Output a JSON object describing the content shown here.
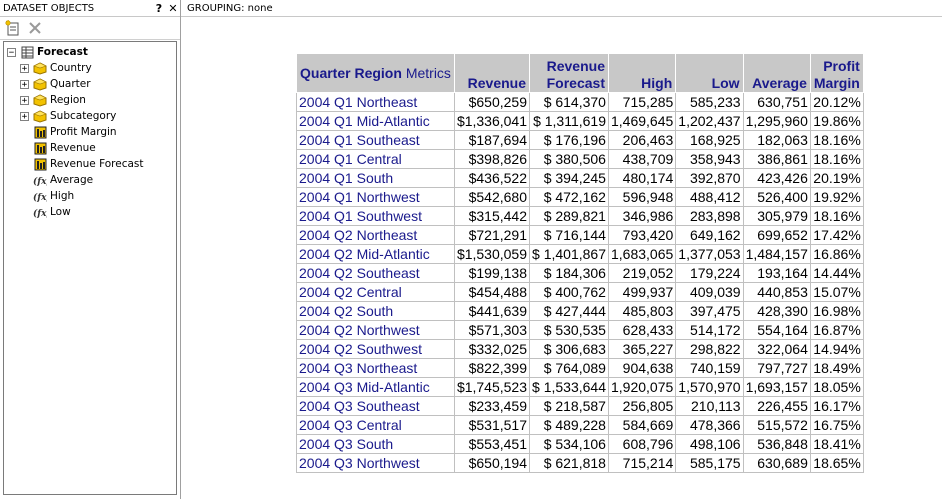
{
  "panel": {
    "title": "DATASET OBJECTS",
    "help_label": "?",
    "close_label": "✕",
    "tree": {
      "root": "Forecast",
      "attributes": [
        "Country",
        "Quarter",
        "Region",
        "Subcategory"
      ],
      "metrics": [
        "Profit Margin",
        "Revenue",
        "Revenue Forecast"
      ],
      "derived": [
        "Average",
        "High",
        "Low"
      ]
    }
  },
  "grouping": {
    "label": "GROUPING:",
    "value": "none"
  },
  "grid": {
    "header": {
      "quarter": "Quarter",
      "region": "Region",
      "metrics": "Metrics",
      "revenue": "Revenue",
      "revenue_forecast_1": "Revenue",
      "revenue_forecast_2": "Forecast",
      "high": "High",
      "low": "Low",
      "average": "Average",
      "profit_margin_1": "Profit",
      "profit_margin_2": "Margin"
    },
    "rows": [
      {
        "quarter": "2004 Q1",
        "region": "Northeast",
        "revenue": "$650,259",
        "forecast": "$ 614,370",
        "high": "715,285",
        "low": "585,233",
        "average": "630,751",
        "margin": "20.12%"
      },
      {
        "quarter": "2004 Q1",
        "region": "Mid-Atlantic",
        "revenue": "$1,336,041",
        "forecast": "$ 1,311,619",
        "high": "1,469,645",
        "low": "1,202,437",
        "average": "1,295,960",
        "margin": "19.86%"
      },
      {
        "quarter": "2004 Q1",
        "region": "Southeast",
        "revenue": "$187,694",
        "forecast": "$ 176,196",
        "high": "206,463",
        "low": "168,925",
        "average": "182,063",
        "margin": "18.16%"
      },
      {
        "quarter": "2004 Q1",
        "region": "Central",
        "revenue": "$398,826",
        "forecast": "$ 380,506",
        "high": "438,709",
        "low": "358,943",
        "average": "386,861",
        "margin": "18.16%"
      },
      {
        "quarter": "2004 Q1",
        "region": "South",
        "revenue": "$436,522",
        "forecast": "$ 394,245",
        "high": "480,174",
        "low": "392,870",
        "average": "423,426",
        "margin": "20.19%"
      },
      {
        "quarter": "2004 Q1",
        "region": "Northwest",
        "revenue": "$542,680",
        "forecast": "$ 472,162",
        "high": "596,948",
        "low": "488,412",
        "average": "526,400",
        "margin": "19.92%"
      },
      {
        "quarter": "2004 Q1",
        "region": "Southwest",
        "revenue": "$315,442",
        "forecast": "$ 289,821",
        "high": "346,986",
        "low": "283,898",
        "average": "305,979",
        "margin": "18.16%"
      },
      {
        "quarter": "2004 Q2",
        "region": "Northeast",
        "revenue": "$721,291",
        "forecast": "$ 716,144",
        "high": "793,420",
        "low": "649,162",
        "average": "699,652",
        "margin": "17.42%"
      },
      {
        "quarter": "2004 Q2",
        "region": "Mid-Atlantic",
        "revenue": "$1,530,059",
        "forecast": "$ 1,401,867",
        "high": "1,683,065",
        "low": "1,377,053",
        "average": "1,484,157",
        "margin": "16.86%"
      },
      {
        "quarter": "2004 Q2",
        "region": "Southeast",
        "revenue": "$199,138",
        "forecast": "$ 184,306",
        "high": "219,052",
        "low": "179,224",
        "average": "193,164",
        "margin": "14.44%"
      },
      {
        "quarter": "2004 Q2",
        "region": "Central",
        "revenue": "$454,488",
        "forecast": "$ 400,762",
        "high": "499,937",
        "low": "409,039",
        "average": "440,853",
        "margin": "15.07%"
      },
      {
        "quarter": "2004 Q2",
        "region": "South",
        "revenue": "$441,639",
        "forecast": "$ 427,444",
        "high": "485,803",
        "low": "397,475",
        "average": "428,390",
        "margin": "16.98%"
      },
      {
        "quarter": "2004 Q2",
        "region": "Northwest",
        "revenue": "$571,303",
        "forecast": "$ 530,535",
        "high": "628,433",
        "low": "514,172",
        "average": "554,164",
        "margin": "16.87%"
      },
      {
        "quarter": "2004 Q2",
        "region": "Southwest",
        "revenue": "$332,025",
        "forecast": "$ 306,683",
        "high": "365,227",
        "low": "298,822",
        "average": "322,064",
        "margin": "14.94%"
      },
      {
        "quarter": "2004 Q3",
        "region": "Northeast",
        "revenue": "$822,399",
        "forecast": "$ 764,089",
        "high": "904,638",
        "low": "740,159",
        "average": "797,727",
        "margin": "18.49%"
      },
      {
        "quarter": "2004 Q3",
        "region": "Mid-Atlantic",
        "revenue": "$1,745,523",
        "forecast": "$ 1,533,644",
        "high": "1,920,075",
        "low": "1,570,970",
        "average": "1,693,157",
        "margin": "18.05%"
      },
      {
        "quarter": "2004 Q3",
        "region": "Southeast",
        "revenue": "$233,459",
        "forecast": "$ 218,587",
        "high": "256,805",
        "low": "210,113",
        "average": "226,455",
        "margin": "16.17%"
      },
      {
        "quarter": "2004 Q3",
        "region": "Central",
        "revenue": "$531,517",
        "forecast": "$ 489,228",
        "high": "584,669",
        "low": "478,366",
        "average": "515,572",
        "margin": "16.75%"
      },
      {
        "quarter": "2004 Q3",
        "region": "South",
        "revenue": "$553,451",
        "forecast": "$ 534,106",
        "high": "608,796",
        "low": "498,106",
        "average": "536,848",
        "margin": "18.41%"
      },
      {
        "quarter": "2004 Q3",
        "region": "Northwest",
        "revenue": "$650,194",
        "forecast": "$ 621,818",
        "high": "715,214",
        "low": "585,175",
        "average": "630,689",
        "margin": "18.65%"
      }
    ]
  },
  "colors": {
    "header_bg": "#c8c8c8",
    "header_text": "#1a1a8c",
    "attr_icon": "#e8b400"
  }
}
